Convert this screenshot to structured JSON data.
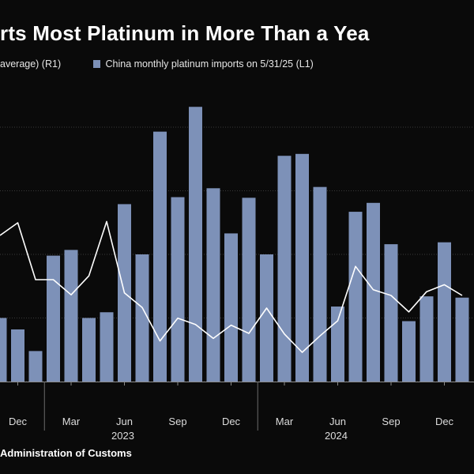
{
  "title": "rts Most Platinum in More Than a Yea",
  "legend": {
    "line_label": "average) (R1)",
    "bar_label": "China monthly platinum imports on 5/31/25 (L1)"
  },
  "source": "Administration of Customs",
  "colors": {
    "background": "#0a0a0a",
    "bar": "#7d91b8",
    "line": "#ffffff",
    "grid": "#3a3a3a"
  },
  "chart_data": {
    "type": "bar",
    "x_tick_labels": [
      "Dec",
      "Mar",
      "Jun",
      "Sep",
      "Dec",
      "Mar",
      "Jun",
      "Sep",
      "Dec"
    ],
    "x_group_labels": [
      "2023",
      "2024"
    ],
    "series": [
      {
        "name": "China monthly platinum imports on 5/31/25 (L1)",
        "type": "bar",
        "axis": "left",
        "values": [
          10,
          8.2,
          4.8,
          19.8,
          20.7,
          10,
          10.9,
          27.9,
          20,
          39.3,
          29,
          43.2,
          30.4,
          23.3,
          28.9,
          20,
          35.5,
          35.8,
          30.6,
          11.8,
          26.7,
          28.1,
          21.6,
          9.5,
          13.4,
          21.9,
          13.2
        ]
      },
      {
        "name": "average) (R1)",
        "type": "line",
        "axis": "right",
        "values": [
          20,
          22,
          13,
          13,
          10.6,
          13.6,
          22.2,
          10.9,
          8.6,
          3.3,
          6.9,
          5.9,
          3.7,
          5.8,
          4.5,
          8.5,
          4.4,
          1.5,
          4.1,
          6.5,
          15.1,
          11.4,
          10.5,
          7.9,
          11.1,
          12.2,
          10.5
        ]
      }
    ],
    "left_ylim": [
      0,
      45
    ],
    "grid": true
  }
}
